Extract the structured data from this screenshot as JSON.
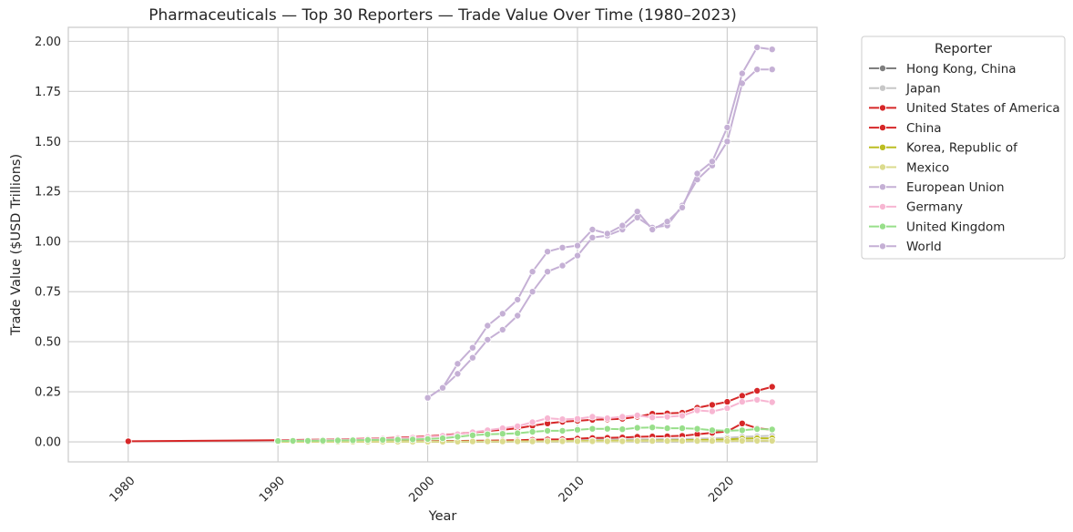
{
  "chart_data": {
    "type": "line",
    "title": "Pharmaceuticals — Top 30 Reporters — Trade Value Over Time (1980–2023)",
    "xlabel": "Year",
    "ylabel": "Trade Value ($USD Trillions)",
    "xlim": [
      1976,
      2026
    ],
    "ylim": [
      -0.1,
      2.07
    ],
    "xticks": [
      1980,
      1990,
      2000,
      2010,
      2020
    ],
    "yticks": [
      0.0,
      0.25,
      0.5,
      0.75,
      1.0,
      1.25,
      1.5,
      1.75,
      2.0
    ],
    "ytick_labels": [
      "0.00",
      "0.25",
      "0.50",
      "0.75",
      "1.00",
      "1.25",
      "1.50",
      "1.75",
      "2.00"
    ],
    "grid": true,
    "legend_title": "Reporter",
    "legend_position": "outside-right-top",
    "series": [
      {
        "name": "Hong Kong, China",
        "color": "#7f7f7f",
        "x": [
          2000,
          2001,
          2002,
          2003,
          2004,
          2005,
          2006,
          2007,
          2008,
          2009,
          2010,
          2011,
          2012,
          2013,
          2014,
          2015,
          2016,
          2017,
          2018,
          2019,
          2020,
          2021,
          2022,
          2023
        ],
        "y": [
          0.001,
          0.001,
          0.001,
          0.001,
          0.001,
          0.001,
          0.002,
          0.002,
          0.002,
          0.002,
          0.003,
          0.003,
          0.003,
          0.003,
          0.003,
          0.003,
          0.003,
          0.003,
          0.004,
          0.004,
          0.004,
          0.005,
          0.005,
          0.005
        ]
      },
      {
        "name": "Japan",
        "color": "#c7c7c7",
        "x": [
          1990,
          1991,
          1992,
          1993,
          1994,
          1995,
          1996,
          1997,
          1998,
          1999,
          2000,
          2001,
          2002,
          2003,
          2004,
          2005,
          2006,
          2007,
          2008,
          2009,
          2010,
          2011,
          2012,
          2013,
          2014,
          2015,
          2016,
          2017,
          2018,
          2019,
          2020,
          2021,
          2022,
          2023
        ],
        "y": [
          0.002,
          0.002,
          0.002,
          0.002,
          0.003,
          0.003,
          0.003,
          0.003,
          0.003,
          0.003,
          0.004,
          0.004,
          0.004,
          0.005,
          0.005,
          0.006,
          0.006,
          0.006,
          0.007,
          0.008,
          0.009,
          0.011,
          0.012,
          0.012,
          0.013,
          0.013,
          0.014,
          0.015,
          0.016,
          0.017,
          0.02,
          0.025,
          0.028,
          0.03
        ]
      },
      {
        "name": "United States of America",
        "color": "#d62728",
        "x": [
          1980,
          1990,
          1991,
          1992,
          1993,
          1994,
          1995,
          1996,
          1997,
          1998,
          1999,
          2000,
          2001,
          2002,
          2003,
          2004,
          2005,
          2006,
          2007,
          2008,
          2009,
          2010,
          2011,
          2012,
          2013,
          2014,
          2015,
          2016,
          2017,
          2018,
          2019,
          2020,
          2021,
          2022,
          2023
        ],
        "y": [
          0.003,
          0.008,
          0.009,
          0.01,
          0.011,
          0.012,
          0.014,
          0.016,
          0.018,
          0.021,
          0.024,
          0.028,
          0.033,
          0.04,
          0.047,
          0.054,
          0.06,
          0.068,
          0.08,
          0.092,
          0.1,
          0.105,
          0.11,
          0.112,
          0.115,
          0.125,
          0.14,
          0.142,
          0.145,
          0.17,
          0.185,
          0.2,
          0.23,
          0.255,
          0.275
        ]
      },
      {
        "name": "China",
        "color": "#d62728",
        "x": [
          1990,
          1991,
          1992,
          1993,
          1994,
          1995,
          1996,
          1997,
          1998,
          1999,
          2000,
          2001,
          2002,
          2003,
          2004,
          2005,
          2006,
          2007,
          2008,
          2009,
          2010,
          2011,
          2012,
          2013,
          2014,
          2015,
          2016,
          2017,
          2018,
          2019,
          2020,
          2021,
          2022,
          2023
        ],
        "y": [
          0.001,
          0.001,
          0.001,
          0.001,
          0.002,
          0.002,
          0.002,
          0.002,
          0.002,
          0.003,
          0.003,
          0.004,
          0.004,
          0.005,
          0.006,
          0.007,
          0.008,
          0.01,
          0.012,
          0.013,
          0.016,
          0.019,
          0.02,
          0.022,
          0.025,
          0.027,
          0.028,
          0.03,
          0.038,
          0.045,
          0.052,
          0.092,
          0.068,
          0.06
        ]
      },
      {
        "name": "Korea, Republic of",
        "color": "#bcbd22",
        "x": [
          1990,
          1991,
          1992,
          1993,
          1994,
          1995,
          1996,
          1997,
          1998,
          1999,
          2000,
          2001,
          2002,
          2003,
          2004,
          2005,
          2006,
          2007,
          2008,
          2009,
          2010,
          2011,
          2012,
          2013,
          2014,
          2015,
          2016,
          2017,
          2018,
          2019,
          2020,
          2021,
          2022,
          2023
        ],
        "y": [
          0.0005,
          0.0005,
          0.0006,
          0.0007,
          0.0008,
          0.0009,
          0.001,
          0.001,
          0.001,
          0.001,
          0.001,
          0.001,
          0.002,
          0.002,
          0.002,
          0.002,
          0.003,
          0.003,
          0.003,
          0.004,
          0.004,
          0.005,
          0.005,
          0.006,
          0.006,
          0.007,
          0.007,
          0.008,
          0.009,
          0.01,
          0.012,
          0.016,
          0.018,
          0.018
        ]
      },
      {
        "name": "Mexico",
        "color": "#dbdb8d",
        "x": [
          1990,
          1991,
          1992,
          1993,
          1994,
          1995,
          1996,
          1997,
          1998,
          1999,
          2000,
          2001,
          2002,
          2003,
          2004,
          2005,
          2006,
          2007,
          2008,
          2009,
          2010,
          2011,
          2012,
          2013,
          2014,
          2015,
          2016,
          2017,
          2018,
          2019,
          2020,
          2021,
          2022,
          2023
        ],
        "y": [
          0.0005,
          0.0005,
          0.0006,
          0.0006,
          0.0007,
          0.0008,
          0.0009,
          0.001,
          0.001,
          0.001,
          0.001,
          0.001,
          0.001,
          0.002,
          0.002,
          0.002,
          0.002,
          0.002,
          0.003,
          0.003,
          0.003,
          0.003,
          0.003,
          0.003,
          0.004,
          0.004,
          0.004,
          0.004,
          0.004,
          0.004,
          0.004,
          0.005,
          0.005,
          0.005
        ]
      },
      {
        "name": "European Union",
        "color": "#c5b0d5",
        "x": [
          2000,
          2001,
          2002,
          2003,
          2004,
          2005,
          2006,
          2007,
          2008,
          2009,
          2010,
          2011,
          2012,
          2013,
          2014,
          2015,
          2016,
          2017,
          2018,
          2019,
          2020,
          2021,
          2022,
          2023
        ],
        "y": [
          0.22,
          0.27,
          0.34,
          0.42,
          0.51,
          0.56,
          0.63,
          0.75,
          0.85,
          0.88,
          0.93,
          1.02,
          1.03,
          1.06,
          1.12,
          1.07,
          1.08,
          1.18,
          1.31,
          1.38,
          1.5,
          1.79,
          1.86,
          1.86
        ]
      },
      {
        "name": "Germany",
        "color": "#f7b6d2",
        "x": [
          1990,
          1991,
          1992,
          1993,
          1994,
          1995,
          1996,
          1997,
          1998,
          1999,
          2000,
          2001,
          2002,
          2003,
          2004,
          2005,
          2006,
          2007,
          2008,
          2009,
          2010,
          2011,
          2012,
          2013,
          2014,
          2015,
          2016,
          2017,
          2018,
          2019,
          2020,
          2021,
          2022,
          2023
        ],
        "y": [
          0.006,
          0.007,
          0.008,
          0.009,
          0.01,
          0.012,
          0.014,
          0.016,
          0.018,
          0.021,
          0.025,
          0.03,
          0.038,
          0.048,
          0.058,
          0.068,
          0.078,
          0.098,
          0.118,
          0.113,
          0.115,
          0.125,
          0.118,
          0.125,
          0.132,
          0.122,
          0.125,
          0.13,
          0.157,
          0.152,
          0.168,
          0.2,
          0.21,
          0.198
        ]
      },
      {
        "name": "United Kingdom",
        "color": "#98df8a",
        "x": [
          1990,
          1991,
          1992,
          1993,
          1994,
          1995,
          1996,
          1997,
          1998,
          1999,
          2000,
          2001,
          2002,
          2003,
          2004,
          2005,
          2006,
          2007,
          2008,
          2009,
          2010,
          2011,
          2012,
          2013,
          2014,
          2015,
          2016,
          2017,
          2018,
          2019,
          2020,
          2021,
          2022,
          2023
        ],
        "y": [
          0.004,
          0.005,
          0.005,
          0.006,
          0.007,
          0.008,
          0.009,
          0.01,
          0.011,
          0.012,
          0.014,
          0.018,
          0.025,
          0.033,
          0.038,
          0.04,
          0.043,
          0.05,
          0.055,
          0.055,
          0.06,
          0.065,
          0.065,
          0.063,
          0.07,
          0.072,
          0.068,
          0.068,
          0.065,
          0.058,
          0.055,
          0.058,
          0.064,
          0.062
        ]
      },
      {
        "name": "World",
        "color": "#c5b0d5",
        "x": [
          2000,
          2001,
          2002,
          2003,
          2004,
          2005,
          2006,
          2007,
          2008,
          2009,
          2010,
          2011,
          2012,
          2013,
          2014,
          2015,
          2016,
          2017,
          2018,
          2019,
          2020,
          2021,
          2022,
          2023
        ],
        "y": [
          0.22,
          0.27,
          0.39,
          0.47,
          0.58,
          0.64,
          0.71,
          0.85,
          0.95,
          0.97,
          0.98,
          1.06,
          1.04,
          1.08,
          1.15,
          1.06,
          1.1,
          1.17,
          1.34,
          1.4,
          1.57,
          1.84,
          1.97,
          1.96
        ]
      }
    ]
  }
}
